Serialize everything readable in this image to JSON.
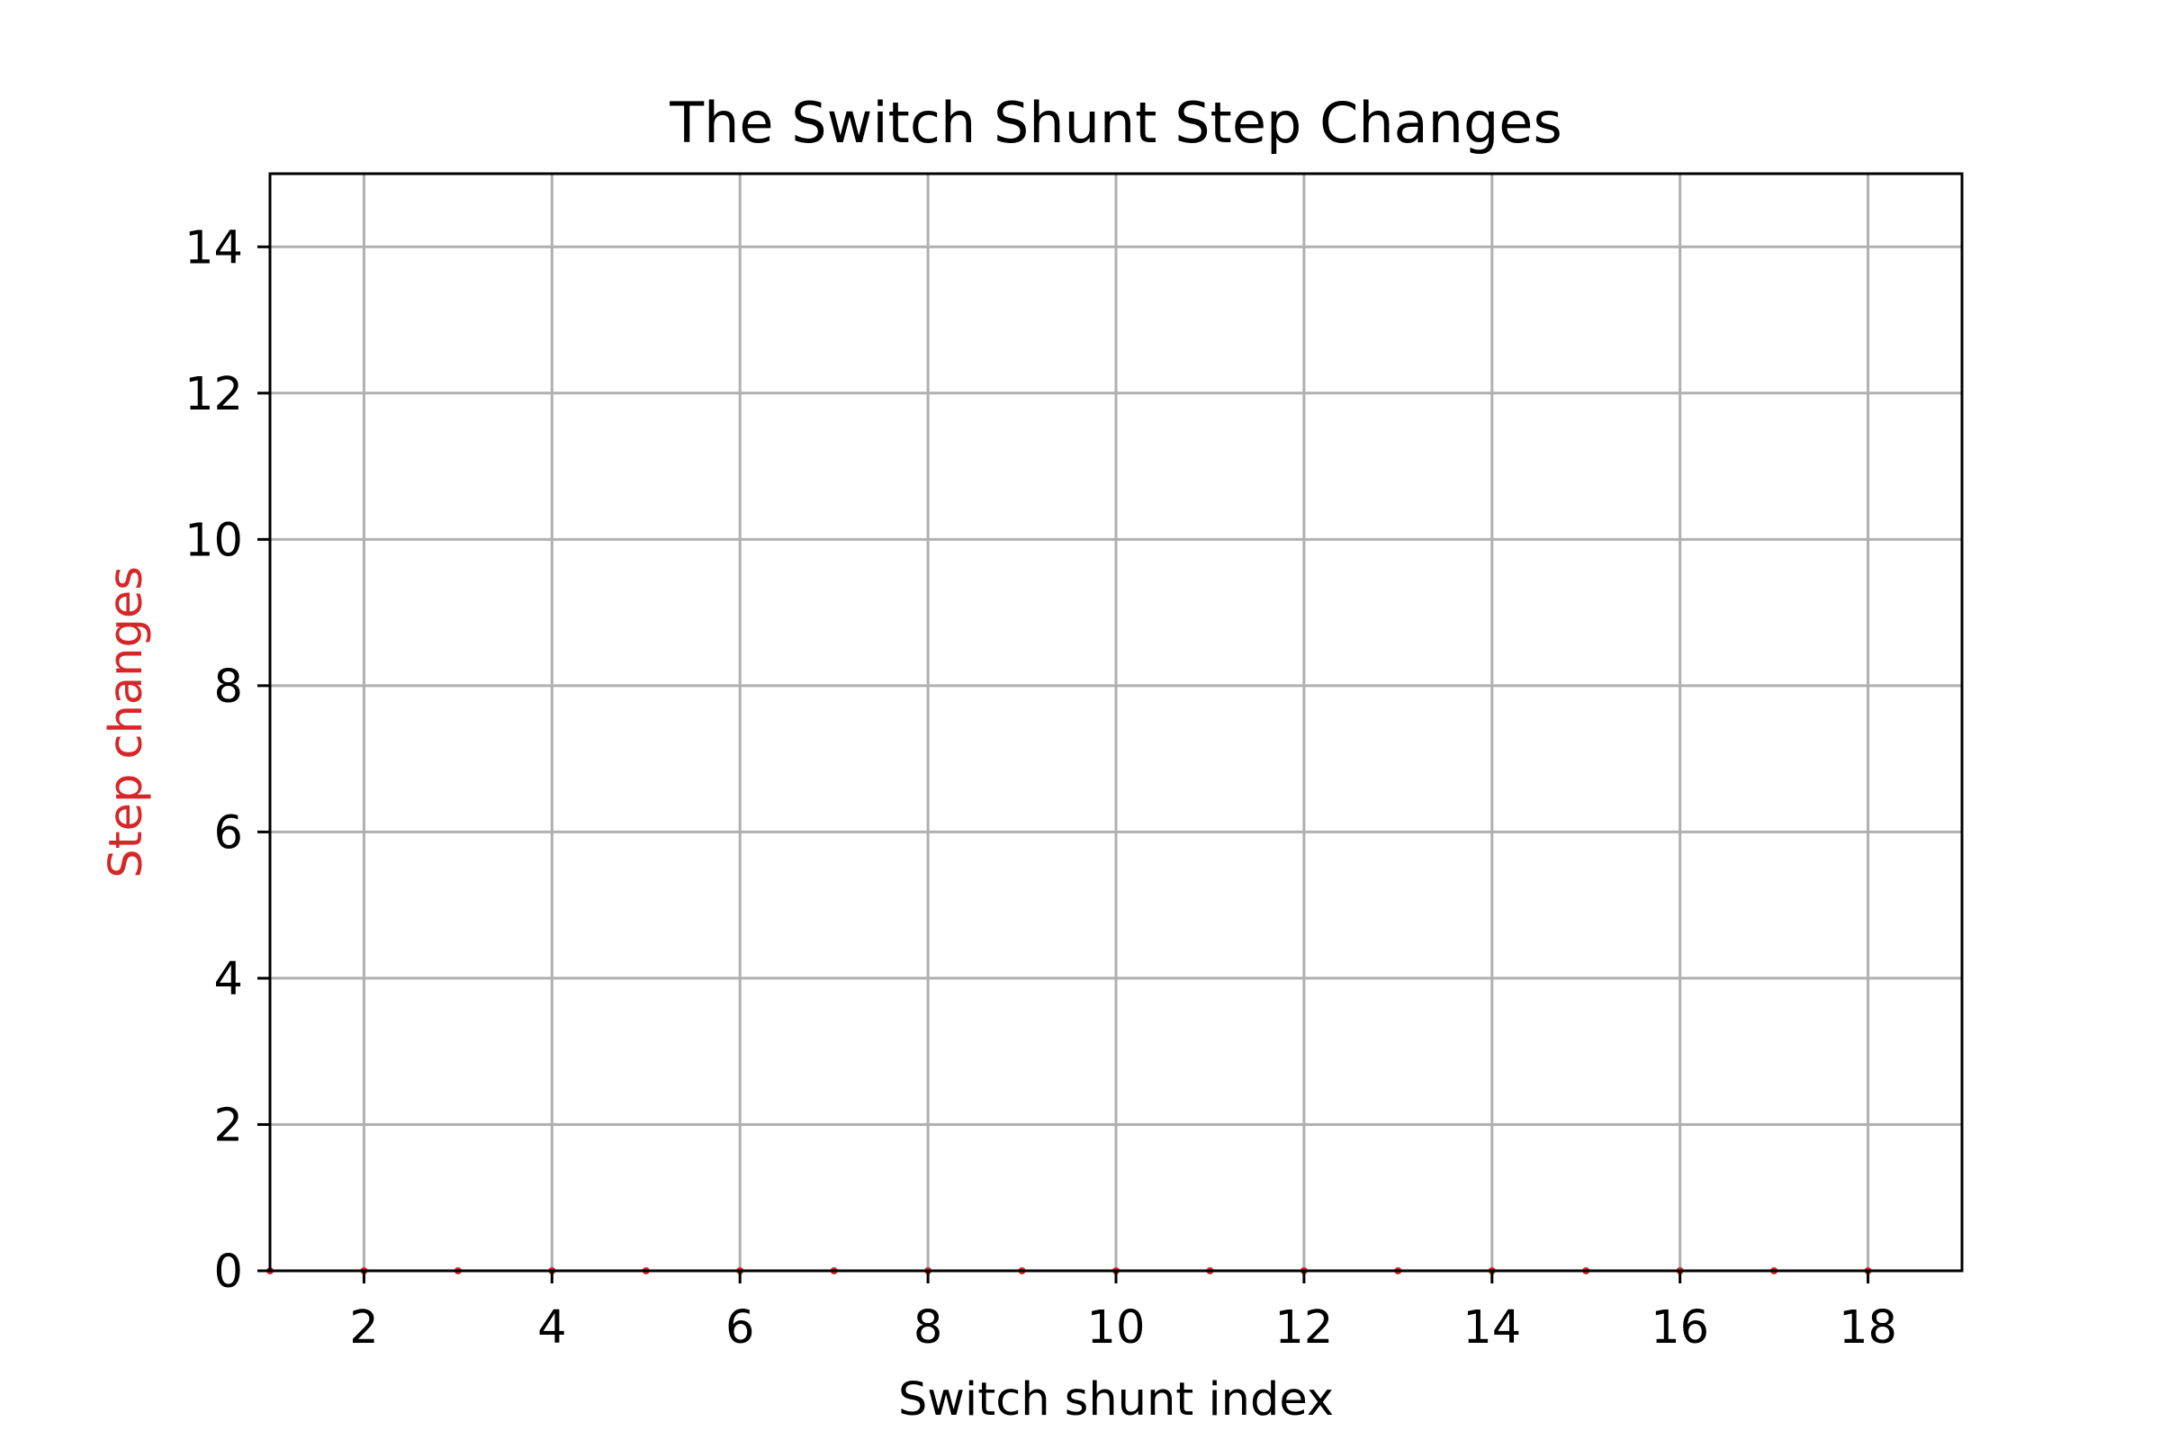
{
  "chart_data": {
    "type": "line",
    "title": "The Switch Shunt Step Changes",
    "xlabel": "Switch shunt index",
    "ylabel": "Step changes",
    "xlim": [
      1,
      19
    ],
    "ylim": [
      0,
      15
    ],
    "xticks": [
      2,
      4,
      6,
      8,
      10,
      12,
      14,
      16,
      18
    ],
    "yticks": [
      0,
      2,
      4,
      6,
      8,
      10,
      12,
      14
    ],
    "grid": true,
    "colors": {
      "series": "#d62728",
      "ylabel": "#d62728",
      "xlabel": "#000000",
      "grid": "#b0b0b0"
    },
    "series": [
      {
        "marker": "dot",
        "x": [
          1,
          2,
          3,
          4,
          5,
          6,
          7,
          8,
          9,
          10,
          11,
          12,
          13,
          14,
          15,
          16,
          17,
          18
        ],
        "y": [
          0,
          0,
          0,
          0,
          0,
          0,
          0,
          0,
          0,
          0,
          0,
          0,
          0,
          0,
          0,
          0,
          0,
          0
        ]
      }
    ]
  }
}
